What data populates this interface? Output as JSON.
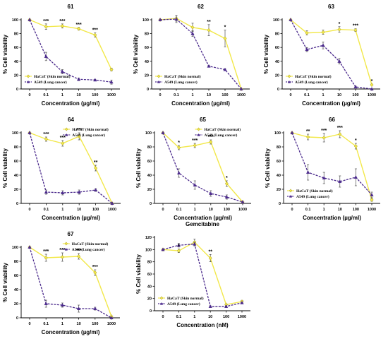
{
  "chart_data": [
    {
      "type": "line",
      "title": "61",
      "xlabel": "Concentration (µg/ml)",
      "ylabel": "% Cell viability",
      "categories": [
        "0",
        "0.1",
        "1",
        "10",
        "100",
        "1000"
      ],
      "ylim": [
        0,
        100
      ],
      "yticks": [
        "0",
        "20",
        "40",
        "60",
        "80",
        "100"
      ],
      "legend_position": "bottom-left",
      "series": [
        {
          "name": "HaCaT (Skin normal)",
          "color": "#f2e84a",
          "marker": "diamond",
          "values": [
            100,
            90,
            91,
            87,
            78,
            28
          ],
          "errors": [
            0,
            4,
            3,
            2,
            3,
            2
          ]
        },
        {
          "name": "A549 (Lung cancer)",
          "color": "#4b2a8c",
          "marker": "triangle",
          "values": [
            100,
            47,
            25,
            14,
            13,
            10
          ],
          "errors": [
            0,
            6,
            3,
            2,
            1,
            3
          ]
        }
      ],
      "annotations": [
        {
          "x_index": 1,
          "text": "***"
        },
        {
          "x_index": 2,
          "text": "***"
        },
        {
          "x_index": 3,
          "text": "***"
        },
        {
          "x_index": 4,
          "text": "***"
        }
      ]
    },
    {
      "type": "line",
      "title": "62",
      "xlabel": "Concentration (µg/ml)",
      "ylabel": "% Cell viability",
      "categories": [
        "0",
        "0.1",
        "1",
        "10",
        "100",
        "1000"
      ],
      "ylim": [
        0,
        100
      ],
      "yticks": [
        "0",
        "20",
        "40",
        "60",
        "80",
        "100"
      ],
      "legend_position": "bottom-left",
      "series": [
        {
          "name": "HaCaT (Skin normal)",
          "color": "#f2e84a",
          "marker": "diamond",
          "values": [
            100,
            102,
            89,
            85,
            73,
            0
          ],
          "errors": [
            0,
            4,
            6,
            8,
            12,
            0
          ]
        },
        {
          "name": "A549 (Lung cancer)",
          "color": "#4b2a8c",
          "marker": "triangle",
          "values": [
            100,
            101,
            80,
            33,
            28,
            0
          ],
          "errors": [
            0,
            5,
            4,
            1,
            1,
            0
          ]
        }
      ],
      "annotations": [
        {
          "x_index": 3,
          "text": "**"
        },
        {
          "x_index": 4,
          "text": "*"
        }
      ]
    },
    {
      "type": "line",
      "title": "63",
      "xlabel": "Concentration (µg/ml)",
      "ylabel": "% Cell viability",
      "categories": [
        "0",
        "0.1",
        "1",
        "10",
        "100",
        "1000"
      ],
      "ylim": [
        0,
        100
      ],
      "yticks": [
        "0",
        "20",
        "40",
        "60",
        "80",
        "100"
      ],
      "legend_position": "bottom-left",
      "series": [
        {
          "name": "HaCaT (Skin normal)",
          "color": "#f2e84a",
          "marker": "diamond",
          "values": [
            100,
            81,
            82,
            86,
            85,
            6
          ],
          "errors": [
            0,
            3,
            3,
            4,
            2,
            1
          ]
        },
        {
          "name": "A549 (Lung cancer)",
          "color": "#4b2a8c",
          "marker": "triangle",
          "values": [
            100,
            57,
            63,
            40,
            3,
            0
          ],
          "errors": [
            0,
            3,
            5,
            4,
            1,
            0
          ]
        }
      ],
      "annotations": [
        {
          "x_index": 3,
          "text": "*"
        },
        {
          "x_index": 4,
          "text": "***"
        },
        {
          "x_index": 5,
          "text": "*"
        }
      ]
    },
    {
      "type": "line",
      "title": "64",
      "xlabel": "Concentration (µg/ml)",
      "ylabel": "% Cell viability",
      "categories": [
        "0",
        "0.1",
        "1",
        "10",
        "100",
        "1000"
      ],
      "ylim": [
        0,
        100
      ],
      "yticks": [
        "0",
        "20",
        "40",
        "60",
        "80",
        "100"
      ],
      "legend_position": "top-right",
      "series": [
        {
          "name": "HaCaT (Skin normal)",
          "color": "#f2e84a",
          "marker": "diamond",
          "values": [
            100,
            91,
            85,
            95,
            50,
            0
          ],
          "errors": [
            0,
            3,
            4,
            5,
            4,
            0
          ]
        },
        {
          "name": "A549 (Lung cancer)",
          "color": "#4b2a8c",
          "marker": "triangle",
          "values": [
            100,
            16,
            15,
            16,
            19,
            0
          ],
          "errors": [
            0,
            3,
            3,
            3,
            2,
            0
          ]
        }
      ],
      "annotations": [
        {
          "x_index": 1,
          "text": "***"
        },
        {
          "x_index": 2,
          "text": "***"
        },
        {
          "x_index": 3,
          "text": "***"
        },
        {
          "x_index": 4,
          "text": "**"
        }
      ]
    },
    {
      "type": "line",
      "title": "65",
      "xlabel": "Concentration (µg/ml)",
      "ylabel": "% Cell viability",
      "categories": [
        "0",
        "0.1",
        "1",
        "10",
        "100",
        "1000"
      ],
      "ylim": [
        0,
        100
      ],
      "yticks": [
        "0",
        "20",
        "40",
        "60",
        "80",
        "100"
      ],
      "legend_position": "top-right",
      "series": [
        {
          "name": "HaCaT (Skin normal)",
          "color": "#f2e84a",
          "marker": "diamond",
          "values": [
            100,
            79,
            82,
            87,
            28,
            2
          ],
          "errors": [
            0,
            3,
            3,
            3,
            4,
            0
          ]
        },
        {
          "name": "A549 (Lung cancer)",
          "color": "#4b2a8c",
          "marker": "triangle",
          "values": [
            100,
            43,
            26,
            14,
            9,
            2
          ],
          "errors": [
            0,
            6,
            6,
            4,
            3,
            0
          ]
        }
      ],
      "annotations": [
        {
          "x_index": 1,
          "text": "*"
        },
        {
          "x_index": 2,
          "text": "***"
        },
        {
          "x_index": 3,
          "text": "***"
        },
        {
          "x_index": 4,
          "text": "*"
        }
      ]
    },
    {
      "type": "line",
      "title": "66",
      "xlabel": "Concentration (µg/ml)",
      "ylabel": "% Cell viability",
      "categories": [
        "0",
        "0.1",
        "1",
        "10",
        "100",
        "1000"
      ],
      "ylim": [
        0,
        100
      ],
      "yticks": [
        "0",
        "20",
        "40",
        "60",
        "80",
        "100"
      ],
      "legend_position": "bottom-left",
      "series": [
        {
          "name": "HaCaT (Skin normal)",
          "color": "#f2e84a",
          "marker": "diamond",
          "values": [
            100,
            94,
            93,
            98,
            81,
            5
          ],
          "errors": [
            0,
            4,
            6,
            5,
            4,
            2
          ]
        },
        {
          "name": "A549 (Lung cancer)",
          "color": "#4b2a8c",
          "marker": "triangle",
          "values": [
            100,
            44,
            36,
            31,
            37,
            12
          ],
          "errors": [
            0,
            11,
            8,
            8,
            12,
            4
          ]
        }
      ],
      "annotations": [
        {
          "x_index": 1,
          "text": "**"
        },
        {
          "x_index": 2,
          "text": "***"
        },
        {
          "x_index": 3,
          "text": "***"
        },
        {
          "x_index": 4,
          "text": "*"
        }
      ]
    },
    {
      "type": "line",
      "title": "67",
      "xlabel": "Concentration (µg/ml)",
      "ylabel": "% Cell viability",
      "categories": [
        "0",
        "0.1",
        "1",
        "10",
        "100",
        "1000"
      ],
      "ylim": [
        0,
        100
      ],
      "yticks": [
        "0",
        "20",
        "40",
        "60",
        "80",
        "100"
      ],
      "legend_position": "top-right",
      "series": [
        {
          "name": "HaCaT (Skin normal)",
          "color": "#f2e84a",
          "marker": "diamond",
          "values": [
            100,
            85,
            86,
            87,
            64,
            2
          ],
          "errors": [
            0,
            5,
            6,
            4,
            4,
            0
          ]
        },
        {
          "name": "A549 (Lung cancer)",
          "color": "#4b2a8c",
          "marker": "triangle",
          "values": [
            100,
            20,
            18,
            13,
            13,
            0
          ],
          "errors": [
            0,
            5,
            3,
            5,
            2,
            0
          ]
        }
      ],
      "annotations": [
        {
          "x_index": 1,
          "text": "***"
        },
        {
          "x_index": 2,
          "text": "***"
        },
        {
          "x_index": 3,
          "text": "***"
        },
        {
          "x_index": 4,
          "text": "***"
        }
      ]
    },
    {
      "type": "line",
      "title": "Gemcitabine",
      "xlabel": "Concentration (nM)",
      "ylabel": "% Cell viability",
      "categories": [
        "0",
        "0.1",
        "1",
        "10",
        "100",
        "1000"
      ],
      "ylim": [
        0,
        120
      ],
      "yticks": [
        "0",
        "20",
        "40",
        "60",
        "80",
        "100",
        "120"
      ],
      "legend_position": "bottom-left",
      "series": [
        {
          "name": "HaCaT (Skin normal)",
          "color": "#f2e84a",
          "marker": "diamond",
          "values": [
            100,
            98,
            112,
            86,
            10,
            15
          ],
          "errors": [
            0,
            3,
            5,
            6,
            1,
            2
          ]
        },
        {
          "name": "A549 (Lung cancer)",
          "color": "#4b2a8c",
          "marker": "triangle",
          "values": [
            100,
            107,
            109,
            7,
            7,
            13
          ],
          "errors": [
            0,
            3,
            3,
            1,
            1,
            1
          ]
        }
      ],
      "annotations": [
        {
          "x_index": 1,
          "text": "*"
        },
        {
          "x_index": 3,
          "text": "**"
        }
      ]
    }
  ]
}
